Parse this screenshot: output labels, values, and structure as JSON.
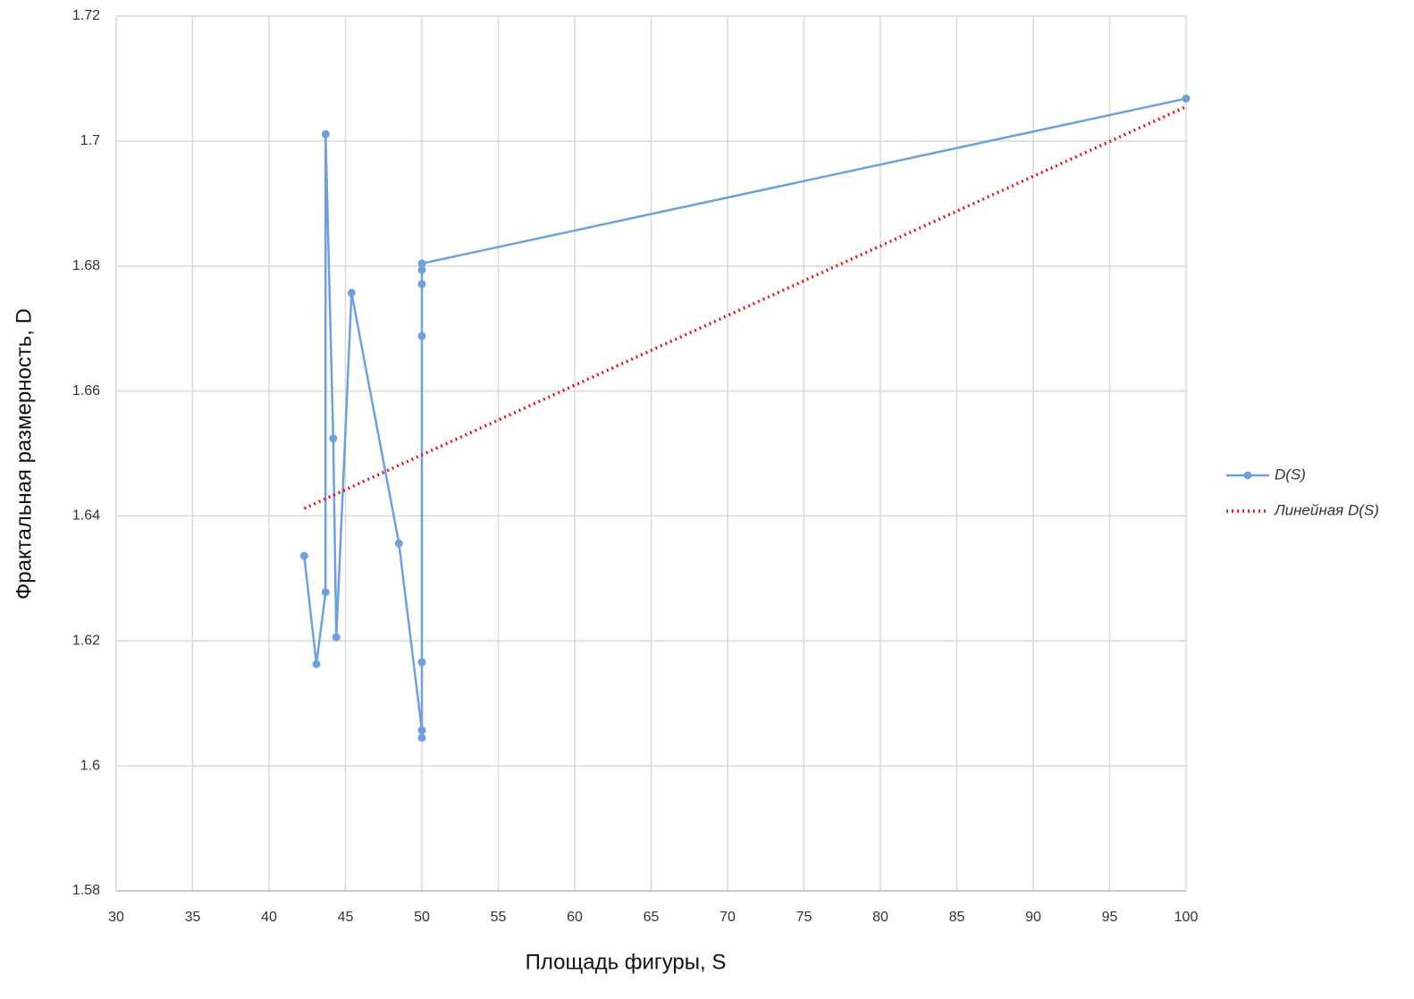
{
  "chart_data": {
    "type": "line",
    "x_label": "Площадь фигуры, S",
    "y_label": "Фрактальная размерность, D",
    "xlim": [
      30,
      100
    ],
    "xticks": [
      30,
      35,
      40,
      45,
      50,
      55,
      60,
      65,
      70,
      75,
      80,
      85,
      90,
      95,
      100
    ],
    "ylim": [
      1.58,
      1.72
    ],
    "yticks": [
      1.58,
      1.6,
      1.62,
      1.64,
      1.66,
      1.68,
      1.7,
      1.72
    ],
    "grid": true,
    "legend": "right",
    "series": [
      {
        "name": "D(S)",
        "color": "#6fa0dc",
        "style": "solid",
        "markers": true,
        "x": [
          42.3,
          43.1,
          43.7,
          43.7,
          44.2,
          44.4,
          45.4,
          48.5,
          50,
          50,
          50,
          50,
          50,
          50,
          50,
          100
        ],
        "values": [
          1.6336,
          1.6163,
          1.6278,
          1.7011,
          1.6524,
          1.6206,
          1.6757,
          1.6356,
          1.6057,
          1.6045,
          1.6166,
          1.6688,
          1.6771,
          1.6794,
          1.6804,
          1.7068
        ]
      },
      {
        "name": "Линейная D(S)",
        "color": "#e8141e",
        "style": "dotted",
        "markers": false,
        "x": [
          42.3,
          100
        ],
        "values": [
          1.6412,
          1.7055
        ]
      }
    ]
  }
}
